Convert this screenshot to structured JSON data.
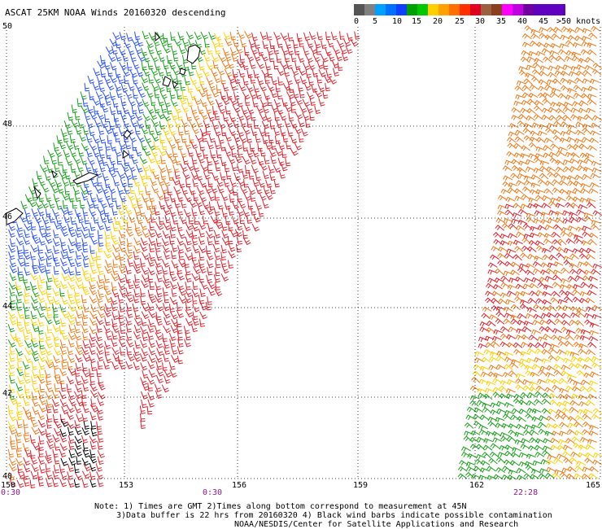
{
  "header": {
    "title": "ASCAT 25KM NOAA Winds 20160320 descending"
  },
  "legend": {
    "colors": [
      "#555555",
      "#808080",
      "#00a0ff",
      "#0070ff",
      "#1040ff",
      "#00a000",
      "#00c800",
      "#ffd000",
      "#ffa000",
      "#ff7000",
      "#ff3000",
      "#e00020",
      "#9a6040",
      "#8a4020",
      "#ff00ff",
      "#c000e0",
      "#7000a0",
      "#6000c0"
    ],
    "labels": [
      "0",
      "5",
      "10",
      "15",
      "20",
      "25",
      "30",
      "35",
      "40",
      "45",
      ">50 knots"
    ]
  },
  "axes": {
    "lat_labels": [
      "50",
      "48",
      "46",
      "44",
      "42",
      "40"
    ],
    "lon_labels": [
      "150",
      "153",
      "156",
      "159",
      "162",
      "165"
    ],
    "time_labels": [
      "0:30",
      "0:30",
      "22:28"
    ]
  },
  "notes": [
    "Note: 1) Times are GMT 2)Times along bottom correspond to measurement at 45N",
    "3)Data buffer is 22 hrs from 20160320 4) Black wind barbs indicate possible contamination",
    "NOAA/NESDIS/Center for Satellite Applications and Research"
  ],
  "colors": {
    "green": "#18a018",
    "yellow": "#ffcf00",
    "orange": "#f07818",
    "red": "#e0202c",
    "blue": "#2850ff",
    "black": "#000000"
  }
}
